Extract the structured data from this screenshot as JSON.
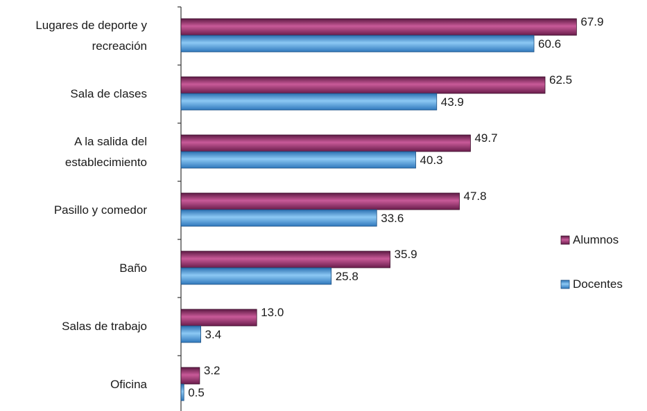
{
  "chart_data": {
    "type": "bar",
    "orientation": "horizontal",
    "categories": [
      [
        "Lugares de deporte y",
        "recreación"
      ],
      [
        "Sala de clases"
      ],
      [
        "A la salida del",
        "establecimiento"
      ],
      [
        "Pasillo y comedor"
      ],
      [
        "Baño"
      ],
      [
        "Salas de trabajo"
      ],
      [
        "Oficina"
      ]
    ],
    "series": [
      {
        "name": "Alumnos",
        "color": "#9a2c6e",
        "values": [
          67.9,
          62.5,
          49.7,
          47.8,
          35.9,
          13.0,
          3.2
        ],
        "labels": [
          "67.9",
          "62.5",
          "49.7",
          "47.8",
          "35.9",
          "13.0",
          "3.2"
        ]
      },
      {
        "name": "Docentes",
        "color": "#4a9ee0",
        "values": [
          60.6,
          43.9,
          40.3,
          33.6,
          25.8,
          3.4,
          0.5
        ],
        "labels": [
          "60.6",
          "43.9",
          "40.3",
          "33.6",
          "25.8",
          "3.4",
          "0.5"
        ]
      }
    ],
    "xlim": [
      0,
      75
    ],
    "grid": false,
    "legend_position": "right"
  }
}
